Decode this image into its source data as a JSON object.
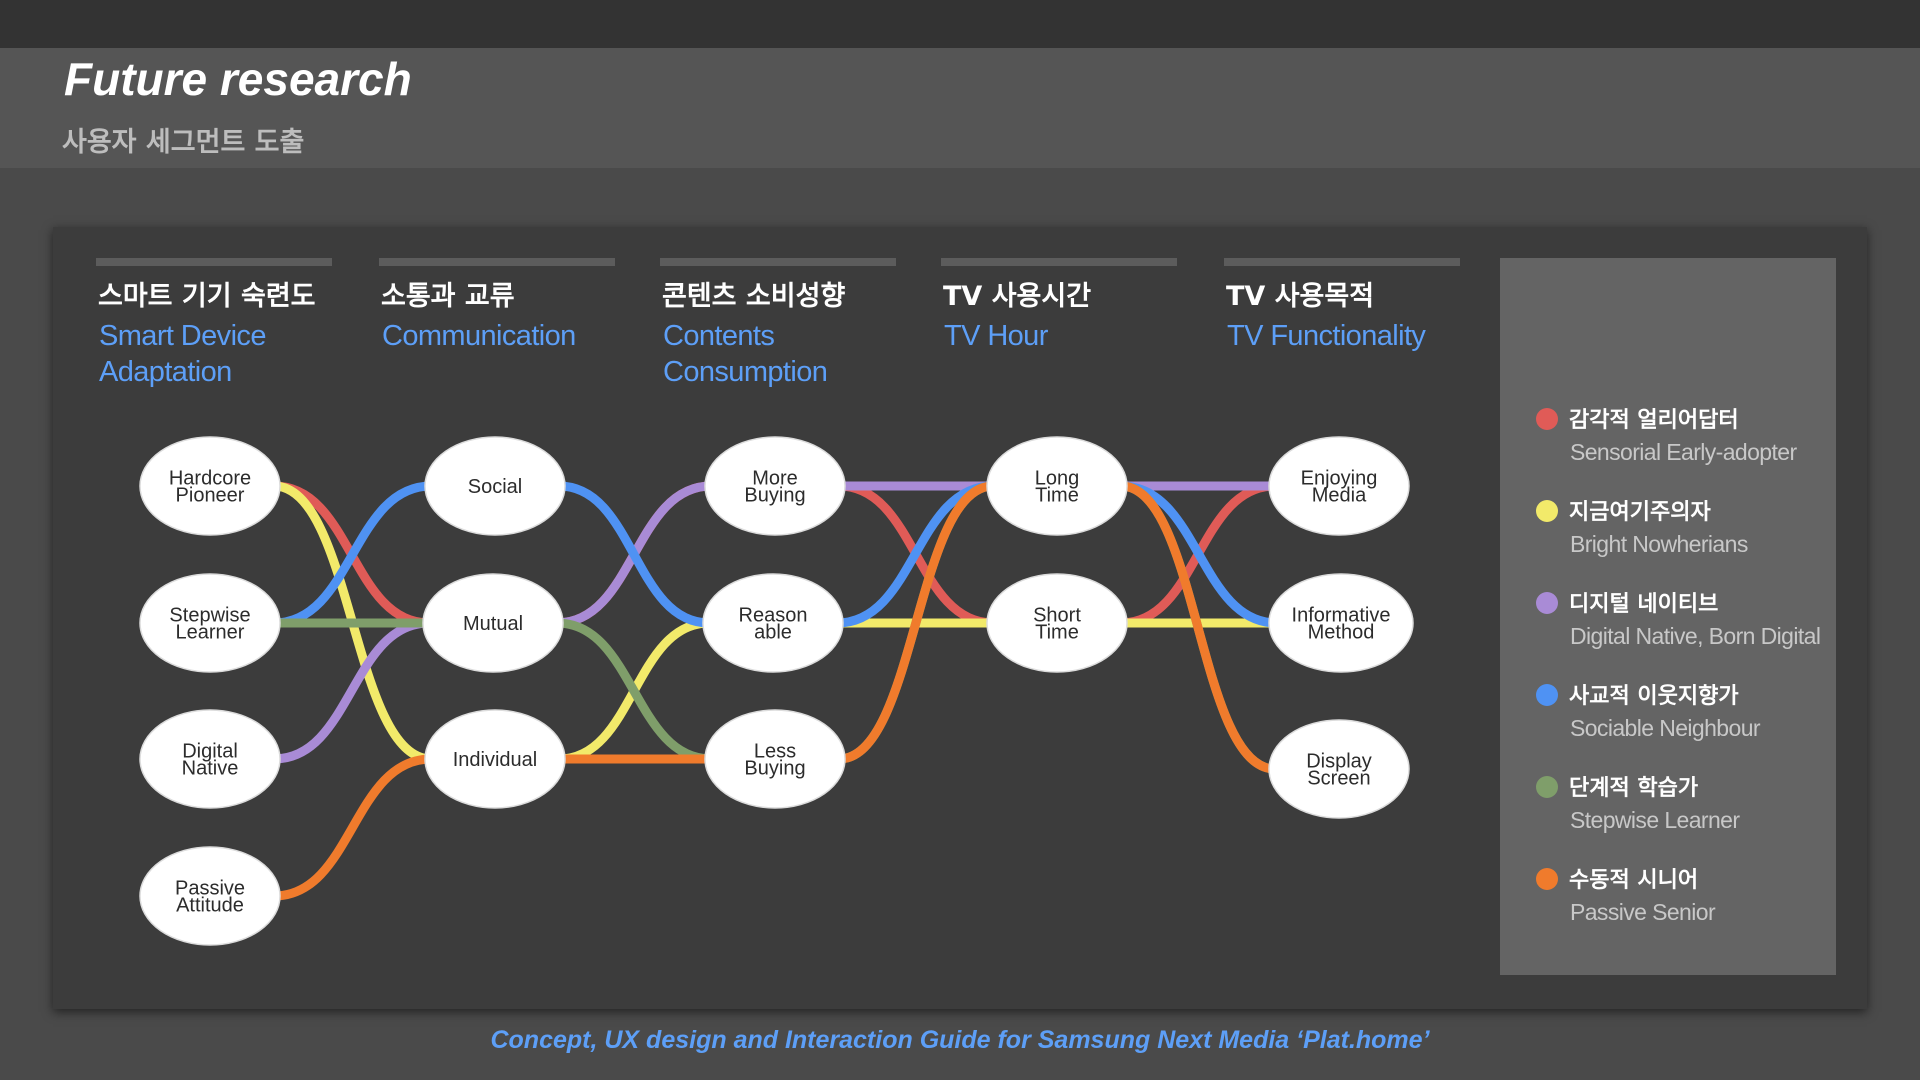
{
  "header": {
    "title": "Future research",
    "subtitle": "사용자 세그먼트 도출"
  },
  "columns": [
    {
      "kr": "스마트 기기 숙련도",
      "en_lines": [
        "Smart Device",
        "Adaptation"
      ]
    },
    {
      "kr": "소통과 교류",
      "en_lines": [
        "Communication"
      ]
    },
    {
      "kr": "콘텐츠 소비성향",
      "en_lines": [
        "Contents",
        "Consumption"
      ]
    },
    {
      "kr": "TV 사용시간",
      "en_lines": [
        "TV Hour"
      ]
    },
    {
      "kr": "TV 사용목적",
      "en_lines": [
        "TV Functionality"
      ]
    }
  ],
  "nodes": [
    {
      "id": "hardcore",
      "column": 0,
      "lines": [
        "Hardcore",
        "Pioneer"
      ]
    },
    {
      "id": "stepwise",
      "column": 0,
      "lines": [
        "Stepwise",
        "Learner"
      ]
    },
    {
      "id": "digital",
      "column": 0,
      "lines": [
        "Digital",
        "Native"
      ]
    },
    {
      "id": "passive",
      "column": 0,
      "lines": [
        "Passive",
        "Attitude"
      ]
    },
    {
      "id": "social",
      "column": 1,
      "lines": [
        "Social"
      ]
    },
    {
      "id": "mutual",
      "column": 1,
      "lines": [
        "Mutual"
      ]
    },
    {
      "id": "individual",
      "column": 1,
      "lines": [
        "Individual"
      ]
    },
    {
      "id": "more",
      "column": 2,
      "lines": [
        "More",
        "Buying"
      ]
    },
    {
      "id": "reason",
      "column": 2,
      "lines": [
        "Reason",
        "able"
      ]
    },
    {
      "id": "less",
      "column": 2,
      "lines": [
        "Less",
        "Buying"
      ]
    },
    {
      "id": "long",
      "column": 3,
      "lines": [
        "Long",
        "Time"
      ]
    },
    {
      "id": "short",
      "column": 3,
      "lines": [
        "Short",
        "Time"
      ]
    },
    {
      "id": "enjoying",
      "column": 4,
      "lines": [
        "Enjoying",
        "Media"
      ]
    },
    {
      "id": "informative",
      "column": 4,
      "lines": [
        "Informative",
        "Method"
      ]
    },
    {
      "id": "display",
      "column": 4,
      "lines": [
        "Display",
        "Screen"
      ]
    }
  ],
  "segments": [
    {
      "id": "red",
      "kr": "감각적 얼리어답터",
      "en": "Sensorial Early-adopter",
      "color": "#e05b57",
      "path": [
        "hardcore",
        "mutual",
        "more",
        "short",
        "enjoying"
      ]
    },
    {
      "id": "yellow",
      "kr": "지금여기주의자",
      "en": "Bright Nowherians",
      "color": "#f2ea6a",
      "path": [
        "hardcore",
        "individual",
        "reason",
        "short",
        "informative"
      ]
    },
    {
      "id": "purple",
      "kr": "디지털 네이티브",
      "en": "Digital Native, Born Digital",
      "color": "#a98bd6",
      "path": [
        "digital",
        "mutual",
        "more",
        "long",
        "enjoying"
      ]
    },
    {
      "id": "blue",
      "kr": "사교적 이웃지향가",
      "en": "Sociable Neighbour",
      "color": "#4f92f3",
      "path": [
        "stepwise",
        "social",
        "reason",
        "long",
        "informative"
      ]
    },
    {
      "id": "green",
      "kr": "단계적 학습가",
      "en": "Stepwise Learner",
      "color": "#7f9e6a",
      "path": [
        "stepwise",
        "mutual",
        "less",
        "long",
        "display"
      ]
    },
    {
      "id": "orange",
      "kr": "수동적 시니어",
      "en": "Passive Senior",
      "color": "#f07b2c",
      "path": [
        "passive",
        "individual",
        "less",
        "long",
        "display"
      ]
    }
  ],
  "footer": {
    "text": "Concept, UX design and Interaction Guide for Samsung Next Media ‘Plat.home’"
  }
}
